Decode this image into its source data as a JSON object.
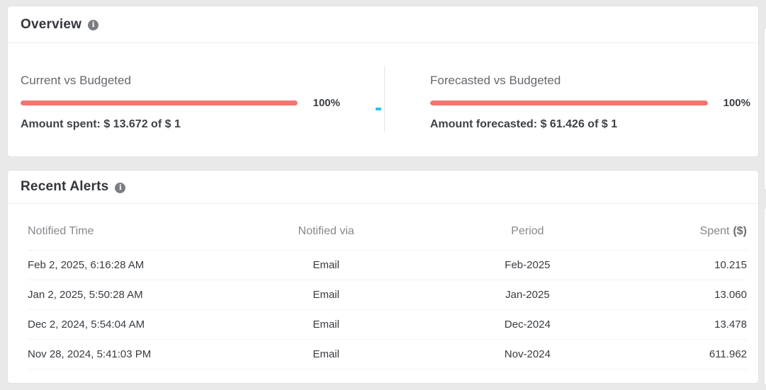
{
  "colors": {
    "page_bg": "#e9e9e9",
    "accent_bar": "#f2746f",
    "cyan_marker": "#2cc2e8"
  },
  "icons": {
    "info_glyph": "i"
  },
  "overview": {
    "title": "Overview",
    "panels": [
      {
        "title": "Current vs Budgeted",
        "percent_label": "100%",
        "percent_value": 100,
        "detail": "Amount spent: $ 13.672 of $ 1"
      },
      {
        "title": "Forecasted vs Budgeted",
        "percent_label": "100%",
        "percent_value": 100,
        "detail": "Amount forecasted: $ 61.426 of $ 1"
      }
    ]
  },
  "alerts": {
    "title": "Recent Alerts",
    "columns": [
      {
        "label": "Notified Time"
      },
      {
        "label": "Notified via"
      },
      {
        "label": "Period"
      },
      {
        "label": "Spent",
        "suffix": "($)"
      }
    ],
    "rows": [
      {
        "time": "Feb 2, 2025, 6:16:28 AM",
        "via": "Email",
        "period": "Feb-2025",
        "spent": "10.215"
      },
      {
        "time": "Jan 2, 2025, 5:50:28 AM",
        "via": "Email",
        "period": "Jan-2025",
        "spent": "13.060"
      },
      {
        "time": "Dec 2, 2024, 5:54:04 AM",
        "via": "Email",
        "period": "Dec-2024",
        "spent": "13.478"
      },
      {
        "time": "Nov 28, 2024, 5:41:03 PM",
        "via": "Email",
        "period": "Nov-2024",
        "spent": "611.962"
      }
    ]
  }
}
